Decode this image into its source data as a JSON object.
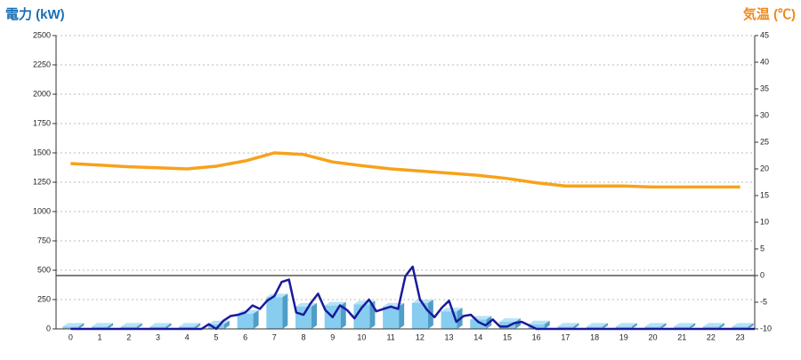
{
  "chart_data": {
    "type": "combo",
    "y_title": "電力 (kW)",
    "y2_title": "気温 (℃)",
    "categories": [
      "0",
      "1",
      "2",
      "3",
      "4",
      "5",
      "6",
      "7",
      "8",
      "9",
      "10",
      "11",
      "12",
      "13",
      "14",
      "15",
      "16",
      "17",
      "18",
      "19",
      "20",
      "21",
      "22",
      "23"
    ],
    "ylim": [
      0,
      2500
    ],
    "yticks": [
      0,
      250,
      500,
      750,
      1000,
      1250,
      1500,
      1750,
      2000,
      2250,
      2500
    ],
    "y2lim": [
      -10,
      45
    ],
    "y2ticks": [
      -10,
      -5,
      0,
      5,
      10,
      15,
      20,
      25,
      30,
      35,
      40,
      45
    ],
    "grid": true,
    "reference_line": {
      "axis": "y2",
      "value": 0
    },
    "bars": {
      "color": "#87cdef",
      "values": [
        20,
        20,
        20,
        20,
        20,
        40,
        130,
        270,
        190,
        200,
        210,
        190,
        220,
        150,
        80,
        60,
        40,
        20,
        20,
        20,
        20,
        20,
        20,
        20
      ]
    },
    "temperature": {
      "axis": "y2",
      "color": "#f7a21b",
      "values": [
        21,
        20.7,
        20.4,
        20.2,
        20,
        20.5,
        21.5,
        23,
        22.7,
        21.3,
        20.6,
        20,
        19.6,
        19.2,
        18.8,
        18.2,
        17.4,
        16.8,
        16.8,
        16.8,
        16.6,
        16.6,
        16.6,
        16.6
      ]
    },
    "demand": {
      "color": "#1a1a9c",
      "x": [
        0,
        4.5,
        4.75,
        5,
        5.25,
        5.5,
        5.75,
        6,
        6.25,
        6.5,
        6.75,
        7,
        7.25,
        7.5,
        7.75,
        8,
        8.25,
        8.5,
        8.75,
        9,
        9.25,
        9.5,
        9.75,
        10,
        10.25,
        10.5,
        10.75,
        11,
        11.25,
        11.5,
        11.75,
        12,
        12.25,
        12.5,
        12.75,
        13,
        13.25,
        13.5,
        13.75,
        14,
        14.25,
        14.5,
        14.75,
        15,
        15.25,
        15.5,
        15.75,
        16,
        23.5
      ],
      "values": [
        0,
        0,
        40,
        0,
        70,
        110,
        120,
        140,
        200,
        170,
        240,
        280,
        400,
        420,
        140,
        120,
        220,
        300,
        160,
        100,
        200,
        160,
        90,
        180,
        250,
        150,
        170,
        190,
        170,
        450,
        530,
        250,
        160,
        100,
        180,
        240,
        60,
        110,
        120,
        60,
        30,
        80,
        20,
        20,
        50,
        60,
        30,
        0,
        0
      ]
    }
  }
}
